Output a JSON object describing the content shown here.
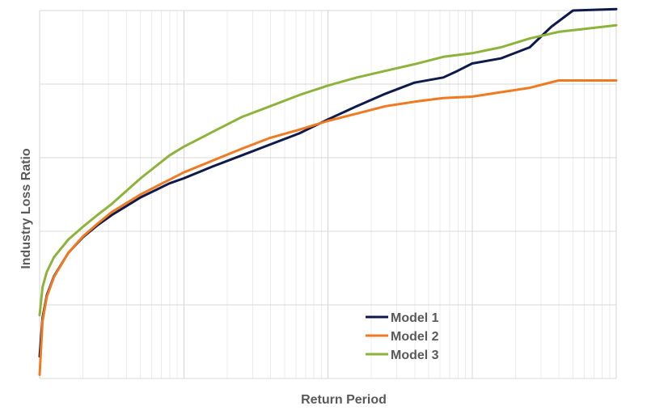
{
  "chart_data": {
    "type": "line",
    "title": "",
    "xlabel": "Return Period",
    "ylabel": "Industry Loss Ratio",
    "x_scale": "log",
    "x_decades": 4,
    "xlim": [
      0,
      4
    ],
    "ylim": [
      0,
      5
    ],
    "grid": true,
    "tick_labels_shown": false,
    "legend_position": "bottom-center",
    "series": [
      {
        "name": "Model 1",
        "color": "#0d1a4a",
        "points": [
          [
            0.0,
            0.3
          ],
          [
            0.02,
            0.82
          ],
          [
            0.05,
            1.13
          ],
          [
            0.1,
            1.39
          ],
          [
            0.2,
            1.71
          ],
          [
            0.3,
            1.92
          ],
          [
            0.4,
            2.08
          ],
          [
            0.5,
            2.22
          ],
          [
            0.7,
            2.46
          ],
          [
            0.9,
            2.65
          ],
          [
            1.0,
            2.72
          ],
          [
            1.2,
            2.88
          ],
          [
            1.4,
            3.03
          ],
          [
            1.6,
            3.18
          ],
          [
            1.8,
            3.33
          ],
          [
            2.0,
            3.52
          ],
          [
            2.2,
            3.7
          ],
          [
            2.4,
            3.87
          ],
          [
            2.6,
            4.02
          ],
          [
            2.8,
            4.09
          ],
          [
            2.9,
            4.18
          ],
          [
            3.0,
            4.28
          ],
          [
            3.2,
            4.35
          ],
          [
            3.4,
            4.5
          ],
          [
            3.55,
            4.78
          ],
          [
            3.7,
            5.0
          ],
          [
            4.0,
            5.02
          ]
        ]
      },
      {
        "name": "Model 2",
        "color": "#f07a22",
        "points": [
          [
            0.0,
            0.05
          ],
          [
            0.02,
            0.78
          ],
          [
            0.05,
            1.11
          ],
          [
            0.1,
            1.38
          ],
          [
            0.2,
            1.71
          ],
          [
            0.3,
            1.93
          ],
          [
            0.4,
            2.1
          ],
          [
            0.5,
            2.26
          ],
          [
            0.7,
            2.5
          ],
          [
            0.9,
            2.7
          ],
          [
            1.0,
            2.8
          ],
          [
            1.2,
            2.96
          ],
          [
            1.4,
            3.12
          ],
          [
            1.6,
            3.27
          ],
          [
            1.8,
            3.38
          ],
          [
            2.0,
            3.5
          ],
          [
            2.2,
            3.6
          ],
          [
            2.4,
            3.7
          ],
          [
            2.6,
            3.76
          ],
          [
            2.8,
            3.81
          ],
          [
            3.0,
            3.83
          ],
          [
            3.2,
            3.89
          ],
          [
            3.4,
            3.95
          ],
          [
            3.6,
            4.05
          ],
          [
            4.0,
            4.05
          ]
        ]
      },
      {
        "name": "Model 3",
        "color": "#8db33a",
        "points": [
          [
            0.0,
            0.86
          ],
          [
            0.02,
            1.24
          ],
          [
            0.05,
            1.45
          ],
          [
            0.1,
            1.65
          ],
          [
            0.2,
            1.89
          ],
          [
            0.3,
            2.06
          ],
          [
            0.4,
            2.22
          ],
          [
            0.5,
            2.37
          ],
          [
            0.7,
            2.72
          ],
          [
            0.9,
            3.03
          ],
          [
            1.0,
            3.15
          ],
          [
            1.2,
            3.35
          ],
          [
            1.4,
            3.55
          ],
          [
            1.6,
            3.7
          ],
          [
            1.8,
            3.85
          ],
          [
            2.0,
            3.98
          ],
          [
            2.2,
            4.09
          ],
          [
            2.4,
            4.18
          ],
          [
            2.6,
            4.27
          ],
          [
            2.8,
            4.37
          ],
          [
            3.0,
            4.42
          ],
          [
            3.2,
            4.5
          ],
          [
            3.4,
            4.62
          ],
          [
            3.6,
            4.71
          ],
          [
            4.0,
            4.8
          ]
        ]
      }
    ]
  }
}
